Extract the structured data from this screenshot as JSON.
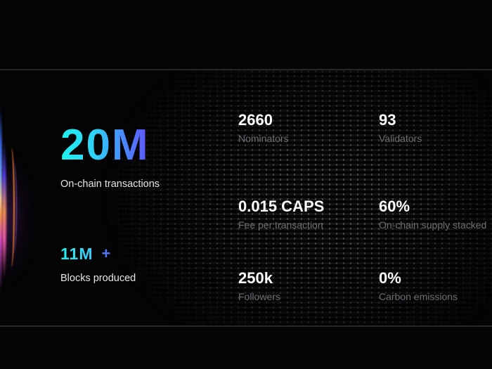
{
  "highlights": {
    "primary": {
      "value": "20M",
      "label": "On-chain transactions"
    },
    "secondary": {
      "value": "11M",
      "suffix": "+",
      "label": "Blocks produced"
    }
  },
  "stats": [
    {
      "value": "2660",
      "label": "Nominators"
    },
    {
      "value": "93",
      "label": "Validators"
    },
    {
      "value": "0.015 CAPS",
      "label": "Fee per transaction"
    },
    {
      "value": "60%",
      "label": "On-chain supply stacked"
    },
    {
      "value": "250k",
      "label": "Followers"
    },
    {
      "value": "0%",
      "label": "Carbon emissions"
    }
  ],
  "colors": {
    "background": "#040405",
    "gradient_start": "#1ef2ee",
    "gradient_end": "#6c3cff",
    "plus_accent": "#4f78ff",
    "value_text": "#ffffff",
    "label_text": "#6d6d72"
  }
}
